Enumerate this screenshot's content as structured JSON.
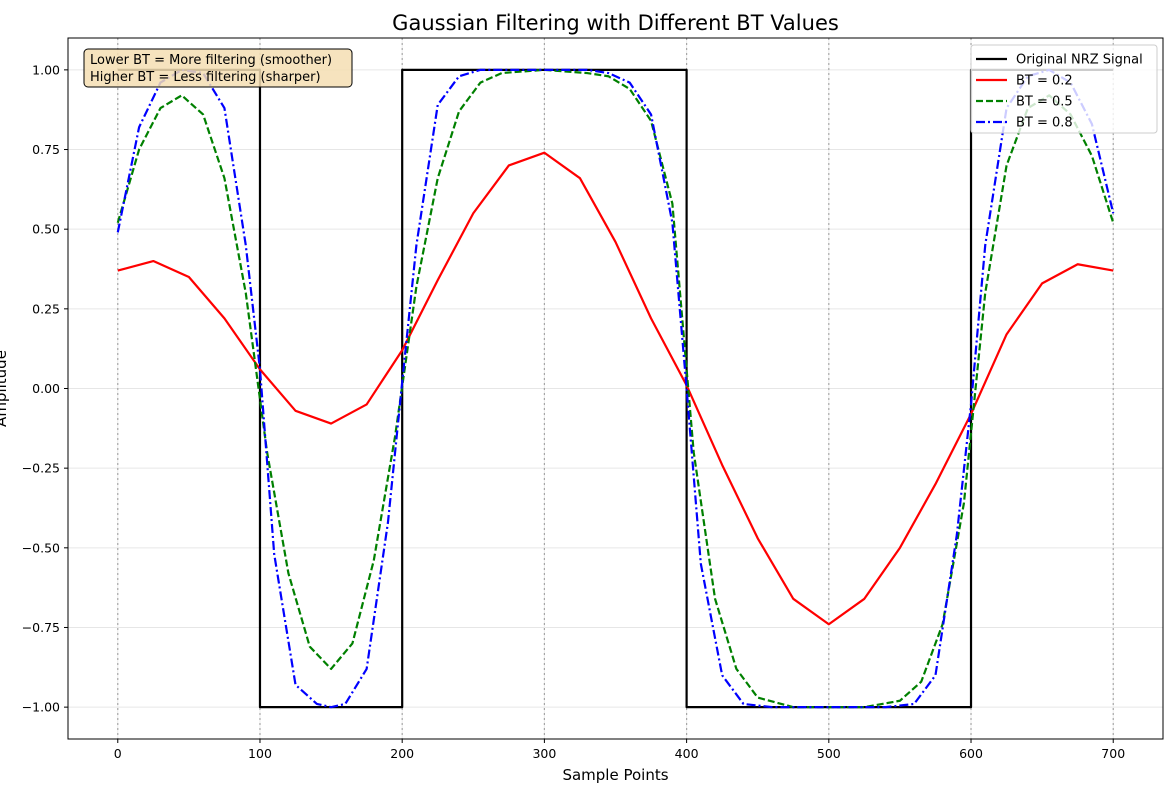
{
  "chart_data": {
    "type": "line",
    "title": "Gaussian Filtering with Different BT Values",
    "xlabel": "Sample Points",
    "ylabel": "Amplitude",
    "xlim": [
      -35,
      735
    ],
    "ylim": [
      -1.1,
      1.1
    ],
    "x_ticks": [
      0,
      100,
      200,
      300,
      400,
      500,
      600,
      700
    ],
    "y_ticks": [
      1.0,
      0.75,
      0.5,
      0.25,
      0.0,
      -0.25,
      -0.5,
      -0.75,
      -1.0
    ],
    "x_tick_labels": [
      "0",
      "100",
      "200",
      "300",
      "400",
      "500",
      "600",
      "700"
    ],
    "y_tick_labels": [
      "1.00",
      "0.75",
      "0.50",
      "0.25",
      "0.00",
      "−0.25",
      "−0.50",
      "−0.75",
      "−1.00"
    ],
    "grid": true,
    "legend_position": "top-right",
    "bit_boundaries": [
      0,
      100,
      200,
      300,
      400,
      500,
      600,
      700
    ],
    "annotation": {
      "line1": "Lower BT = More filtering (smoother)",
      "line2": "Higher BT = Less filtering (sharper)",
      "position": "top-left"
    },
    "series": [
      {
        "name": "Original NRZ Signal",
        "color": "#000000",
        "dash": "solid",
        "x": [
          0,
          100,
          100,
          200,
          200,
          400,
          400,
          600,
          600,
          700
        ],
        "y": [
          1,
          1,
          -1,
          -1,
          1,
          1,
          -1,
          -1,
          1,
          1
        ]
      },
      {
        "name": "BT = 0.2",
        "color": "#ff0000",
        "dash": "solid",
        "x": [
          0,
          25,
          50,
          75,
          100,
          125,
          150,
          175,
          200,
          225,
          250,
          275,
          300,
          325,
          350,
          375,
          400,
          425,
          450,
          475,
          500,
          525,
          550,
          575,
          600,
          625,
          650,
          675,
          700
        ],
        "y": [
          0.37,
          0.4,
          0.35,
          0.22,
          0.06,
          -0.07,
          -0.11,
          -0.05,
          0.12,
          0.34,
          0.55,
          0.7,
          0.74,
          0.66,
          0.46,
          0.22,
          0.01,
          -0.24,
          -0.47,
          -0.66,
          -0.74,
          -0.66,
          -0.5,
          -0.3,
          -0.08,
          0.17,
          0.33,
          0.39,
          0.37
        ]
      },
      {
        "name": "BT = 0.5",
        "color": "#008000",
        "dash": "dashed",
        "x": [
          0,
          15,
          30,
          45,
          60,
          75,
          90,
          105,
          120,
          135,
          150,
          165,
          180,
          195,
          210,
          225,
          240,
          255,
          270,
          300,
          330,
          345,
          360,
          375,
          390,
          405,
          420,
          435,
          450,
          475,
          500,
          525,
          550,
          565,
          580,
          595,
          610,
          625,
          640,
          655,
          670,
          685,
          700
        ],
        "y": [
          0.52,
          0.75,
          0.88,
          0.92,
          0.86,
          0.66,
          0.3,
          -0.2,
          -0.58,
          -0.81,
          -0.88,
          -0.8,
          -0.54,
          -0.15,
          0.32,
          0.66,
          0.87,
          0.96,
          0.99,
          1.0,
          0.99,
          0.98,
          0.94,
          0.84,
          0.58,
          -0.2,
          -0.66,
          -0.88,
          -0.97,
          -1.0,
          -1.0,
          -1.0,
          -0.98,
          -0.92,
          -0.74,
          -0.36,
          0.3,
          0.7,
          0.88,
          0.92,
          0.86,
          0.73,
          0.52
        ]
      },
      {
        "name": "BT = 0.8",
        "color": "#0000ff",
        "dash": "dashdot",
        "x": [
          0,
          15,
          30,
          45,
          60,
          75,
          90,
          100,
          110,
          125,
          140,
          150,
          160,
          175,
          190,
          200,
          210,
          225,
          240,
          255,
          270,
          300,
          330,
          345,
          360,
          375,
          390,
          400,
          410,
          425,
          440,
          460,
          500,
          540,
          560,
          575,
          590,
          600,
          610,
          625,
          640,
          655,
          670,
          685,
          700
        ],
        "y": [
          0.49,
          0.82,
          0.96,
          1.0,
          0.99,
          0.88,
          0.45,
          0.06,
          -0.52,
          -0.93,
          -0.99,
          -1.0,
          -0.99,
          -0.88,
          -0.42,
          0.02,
          0.45,
          0.89,
          0.98,
          1.0,
          1.0,
          1.0,
          1.0,
          0.99,
          0.96,
          0.86,
          0.52,
          0.0,
          -0.55,
          -0.9,
          -0.99,
          -1.0,
          -1.0,
          -1.0,
          -0.99,
          -0.9,
          -0.46,
          -0.05,
          0.45,
          0.88,
          0.98,
          1.0,
          0.96,
          0.83,
          0.55
        ]
      }
    ]
  }
}
